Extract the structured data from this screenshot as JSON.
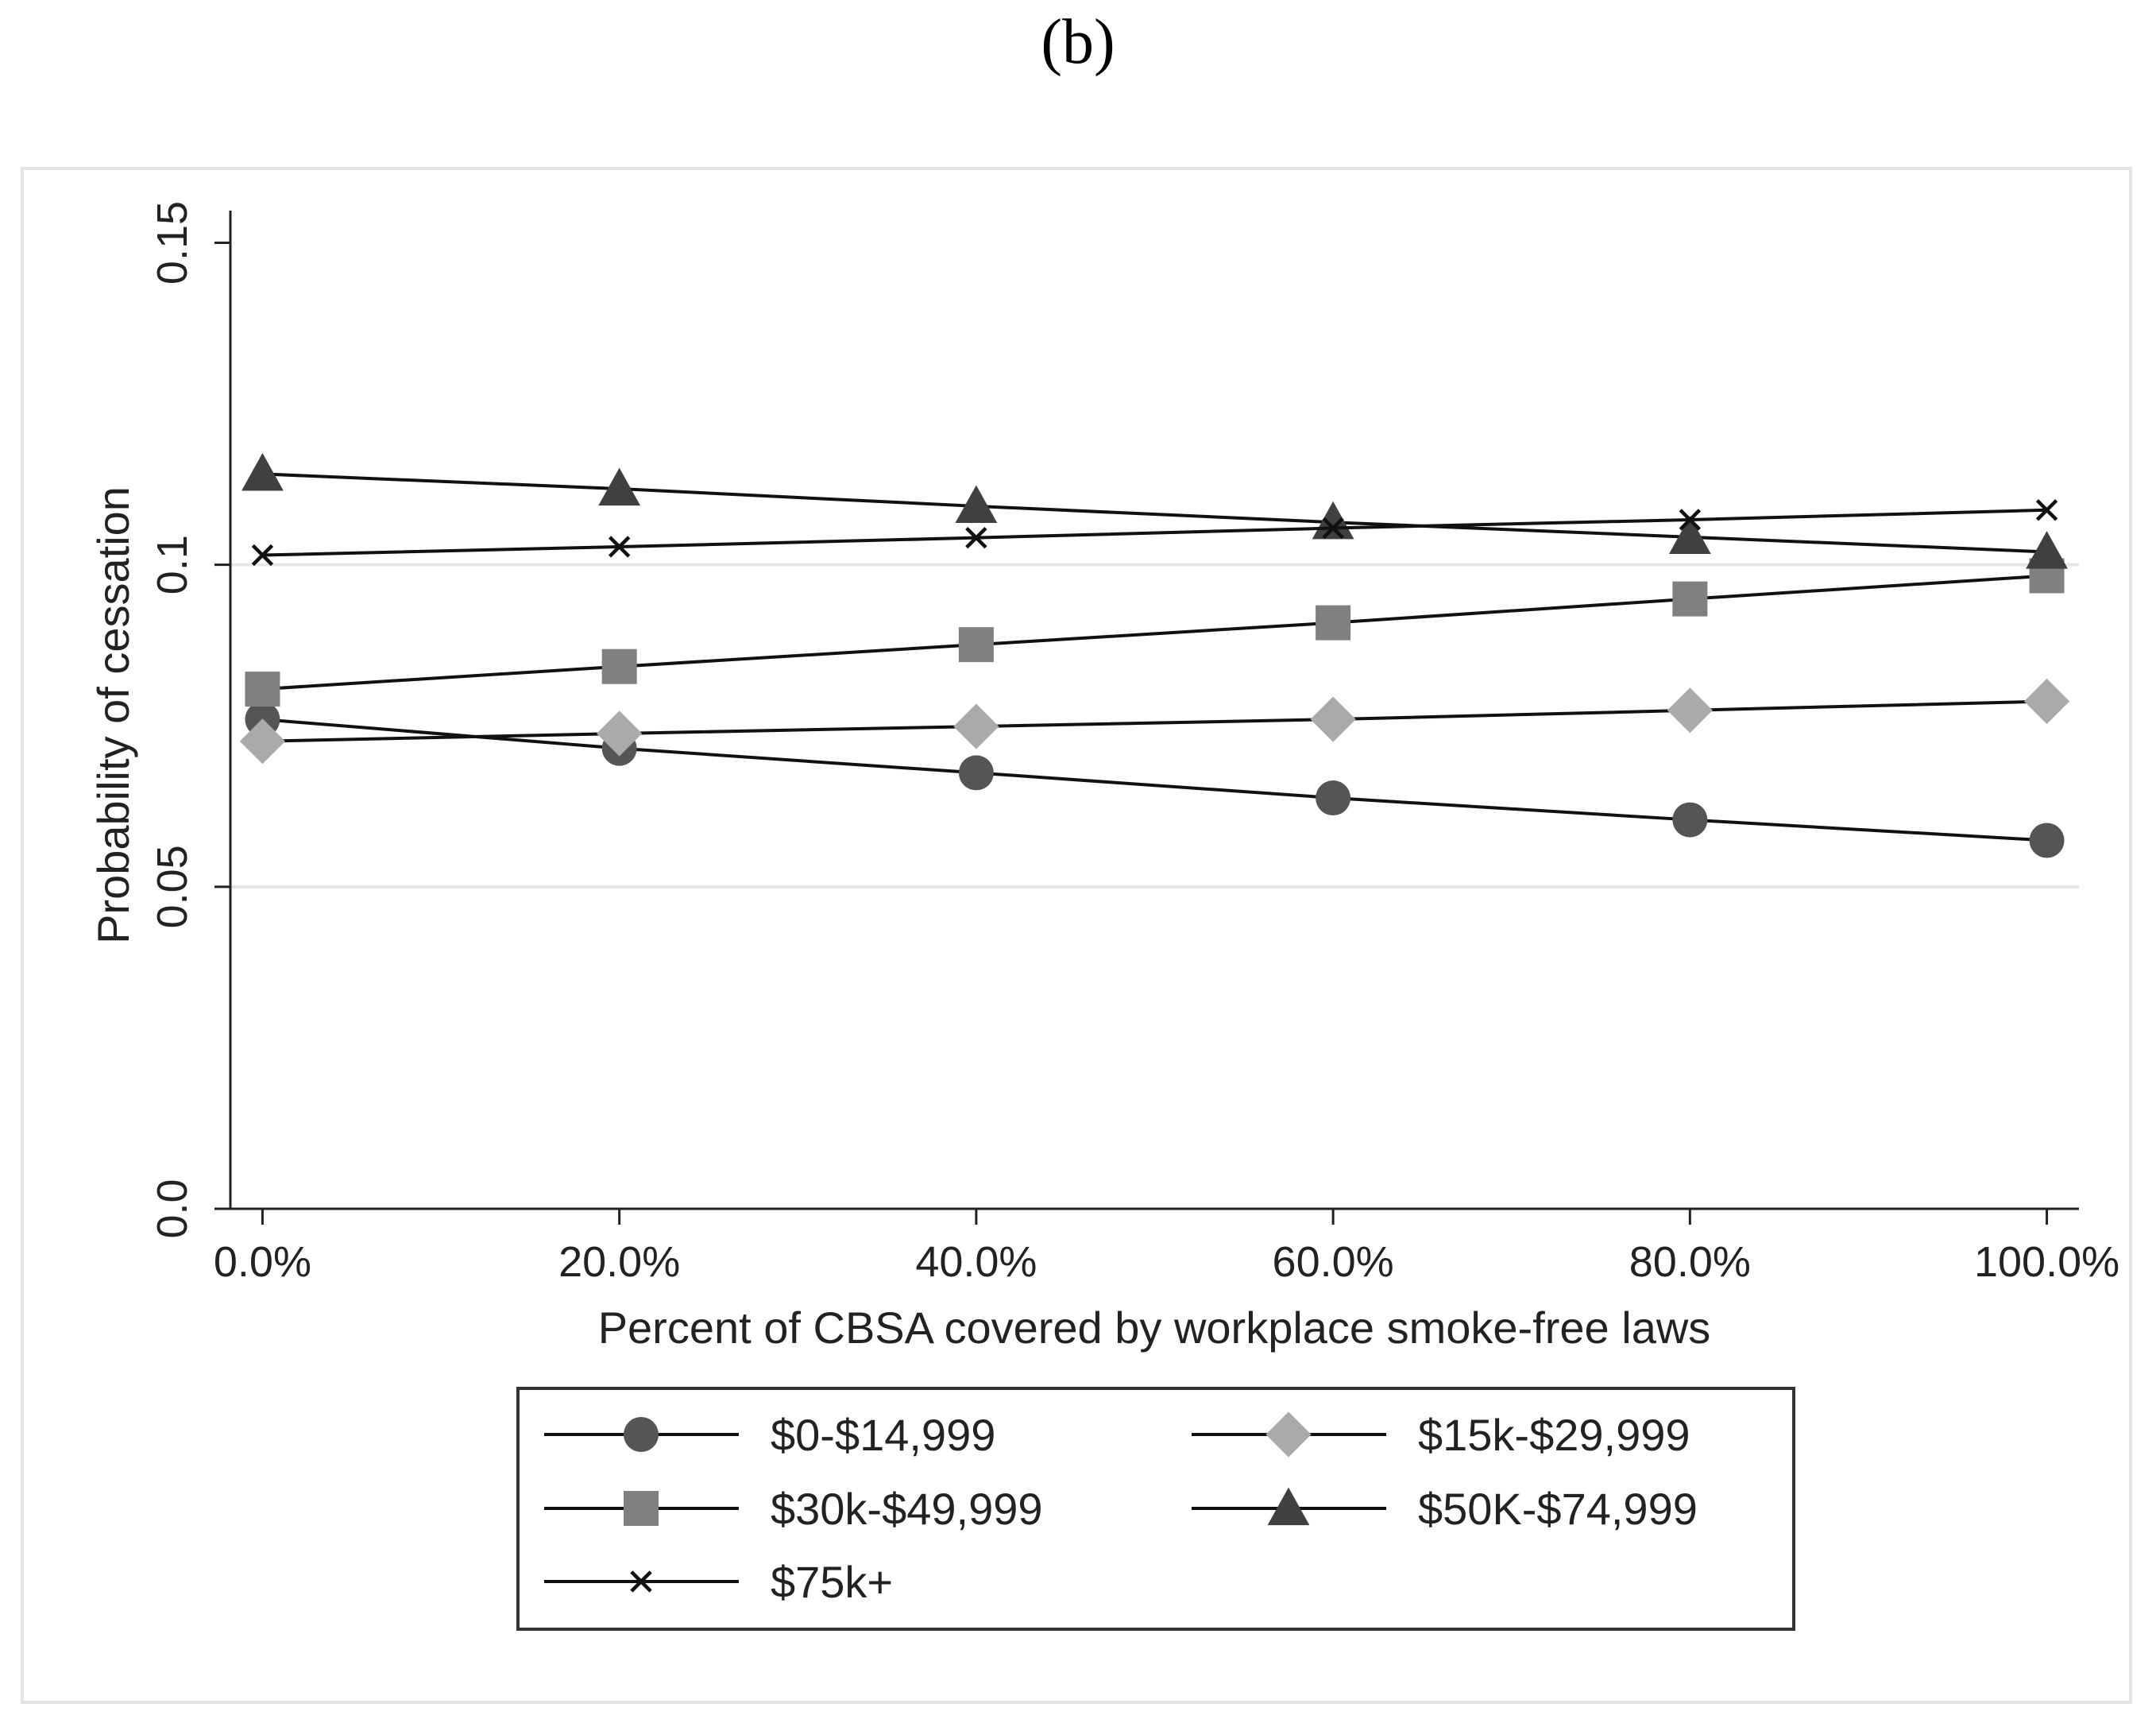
{
  "figure_label": "(b)",
  "chart_data": {
    "type": "line",
    "title": "",
    "xlabel": "Percent of CBSA covered by workplace smoke-free laws",
    "ylabel": "Probability of cessation",
    "x": [
      0,
      20,
      40,
      60,
      80,
      100
    ],
    "x_tick_labels": [
      "0.0%",
      "20.0%",
      "40.0%",
      "60.0%",
      "80.0%",
      "100.0%"
    ],
    "y_ticks": [
      0,
      0.05,
      0.1,
      0.15
    ],
    "y_tick_labels": [
      "0.0",
      "0.05",
      "0.1",
      "0.15"
    ],
    "ylim": [
      0,
      0.155
    ],
    "xlim": [
      -1.8,
      101.8
    ],
    "gridlines_y": [
      0.05,
      0.1
    ],
    "legend_position": "bottom",
    "series": [
      {
        "name": "$0-$14,999",
        "marker": "circle",
        "color": "#555555",
        "values": [
          0.076,
          0.0715,
          0.0677,
          0.0638,
          0.0604,
          0.0572
        ]
      },
      {
        "name": "$15k-$29,999",
        "marker": "diamond",
        "color": "#aaaaaa",
        "values": [
          0.0726,
          0.0738,
          0.0749,
          0.076,
          0.0774,
          0.0788
        ]
      },
      {
        "name": "$30k-$49,999",
        "marker": "square",
        "color": "#808080",
        "values": [
          0.0807,
          0.0842,
          0.0876,
          0.091,
          0.0947,
          0.0983
        ]
      },
      {
        "name": "$50K-$74,999",
        "marker": "triangle",
        "color": "#404040",
        "values": [
          0.1141,
          0.1118,
          0.1091,
          0.1066,
          0.1043,
          0.102
        ]
      },
      {
        "name": "$75k+",
        "marker": "x",
        "color": "#111111",
        "values": [
          0.1015,
          0.1028,
          0.1042,
          0.1057,
          0.107,
          0.1085
        ]
      }
    ]
  }
}
